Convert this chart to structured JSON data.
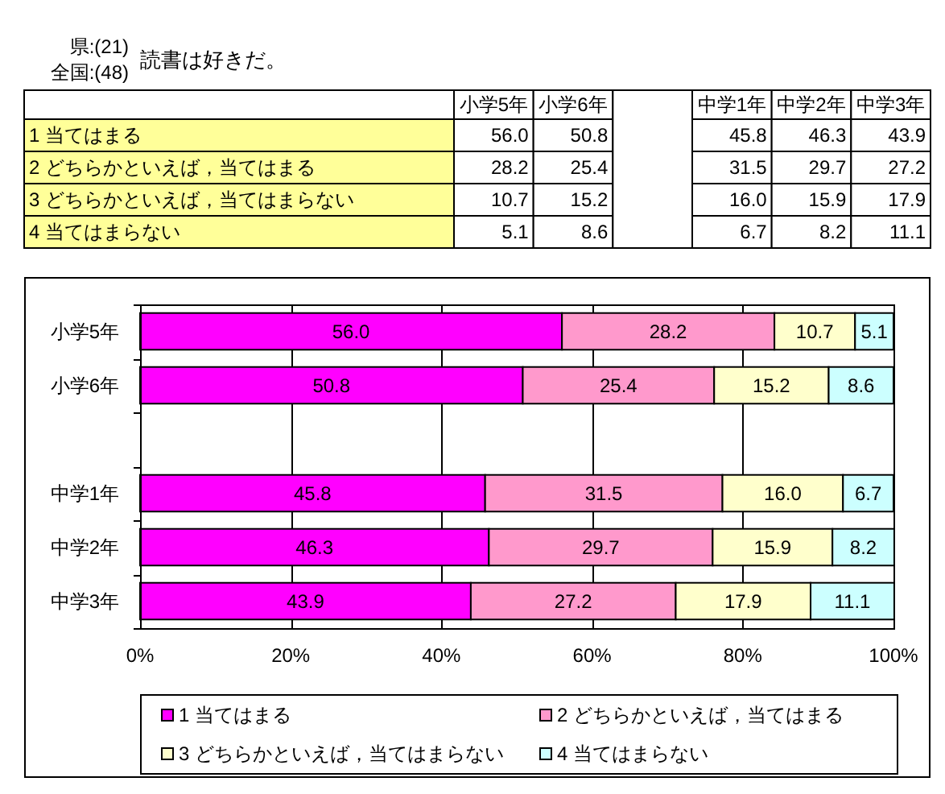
{
  "chart_data": {
    "type": "bar",
    "orientation": "horizontal",
    "stacked": true,
    "title": "読書は好きだ。",
    "annotations": [
      "県:(21)",
      "全国:(48)"
    ],
    "categories": [
      "小学5年",
      "小学6年",
      null,
      "中学1年",
      "中学2年",
      "中学3年"
    ],
    "series": [
      {
        "name": "1 当てはまる",
        "color": "#ff00ff",
        "values": [
          56.0,
          50.8,
          null,
          45.8,
          46.3,
          43.9
        ],
        "value_labels": [
          "56.0",
          "50.8",
          null,
          "45.8",
          "46.3",
          "43.9"
        ]
      },
      {
        "name": "2 どちらかといえば，当てはまる",
        "color": "#ff99cc",
        "values": [
          28.2,
          25.4,
          null,
          31.5,
          29.7,
          27.2
        ],
        "value_labels": [
          "28.2",
          "25.4",
          null,
          "31.5",
          "29.7",
          "27.2"
        ]
      },
      {
        "name": "3 どちらかといえば，当てはまらない",
        "color": "#ffffcc",
        "values": [
          10.7,
          15.2,
          null,
          16.0,
          15.9,
          17.9
        ],
        "value_labels": [
          "10.7",
          "15.2",
          null,
          "16.0",
          "15.9",
          "17.9"
        ]
      },
      {
        "name": "4 当てはまらない",
        "color": "#ccffff",
        "values": [
          5.1,
          8.6,
          null,
          6.7,
          8.2,
          11.1
        ],
        "value_labels": [
          "5.1",
          "8.6",
          null,
          "6.7",
          "8.2",
          "11.1"
        ]
      }
    ],
    "xlim": [
      0,
      100
    ],
    "xticks": [
      {
        "value": 0,
        "label": "0%"
      },
      {
        "value": 20,
        "label": "20%"
      },
      {
        "value": 40,
        "label": "40%"
      },
      {
        "value": 60,
        "label": "60%"
      },
      {
        "value": 80,
        "label": "80%"
      },
      {
        "value": 100,
        "label": "100%"
      }
    ],
    "grid": "x",
    "legend": "bottom"
  }
}
